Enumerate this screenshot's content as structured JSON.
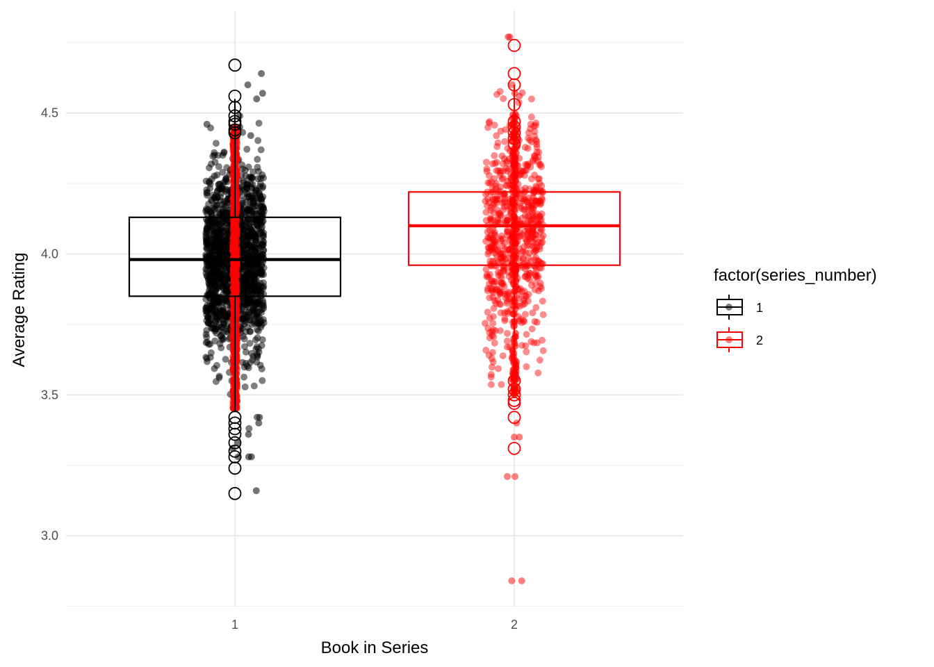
{
  "chart_data": {
    "type": "boxplot",
    "xlabel": "Book in Series",
    "ylabel": "Average Rating",
    "categories": [
      "1",
      "2"
    ],
    "ylim": [
      2.75,
      4.77
    ],
    "y_ticks": [
      3.0,
      3.5,
      4.0,
      4.5
    ],
    "y_tick_labels": [
      "3.0",
      "3.5",
      "4.0",
      "4.5"
    ],
    "grid": true,
    "legend": {
      "title": "factor(series_number)",
      "position": "right",
      "entries": [
        "1",
        "2"
      ]
    },
    "colors": {
      "1": "#000000",
      "2": "#ff0000"
    },
    "series": [
      {
        "name": "1",
        "box": {
          "q1": 3.85,
          "median": 3.98,
          "q3": 4.13,
          "whisker_low": 3.44,
          "whisker_high": 4.55
        },
        "outliers": [
          4.67,
          4.56,
          4.52,
          4.49,
          4.47,
          4.46,
          4.44,
          4.43,
          3.42,
          3.4,
          3.38,
          3.36,
          3.33,
          3.3,
          3.28,
          3.24,
          3.15
        ],
        "jitter_summary": {
          "min": 3.15,
          "max": 4.65,
          "center": 3.98,
          "spread": 0.16
        }
      },
      {
        "name": "2",
        "box": {
          "q1": 3.96,
          "median": 4.1,
          "q3": 4.22,
          "whisker_low": 3.58,
          "whisker_high": 4.6
        },
        "outliers": [
          4.74,
          4.64,
          4.6,
          4.53,
          4.47,
          4.45,
          4.43,
          4.41,
          4.39,
          3.55,
          3.52,
          3.5,
          3.48,
          3.47,
          3.42,
          3.31
        ],
        "jitter_summary": {
          "min": 2.84,
          "max": 4.77,
          "center": 4.08,
          "spread": 0.2
        }
      }
    ]
  }
}
